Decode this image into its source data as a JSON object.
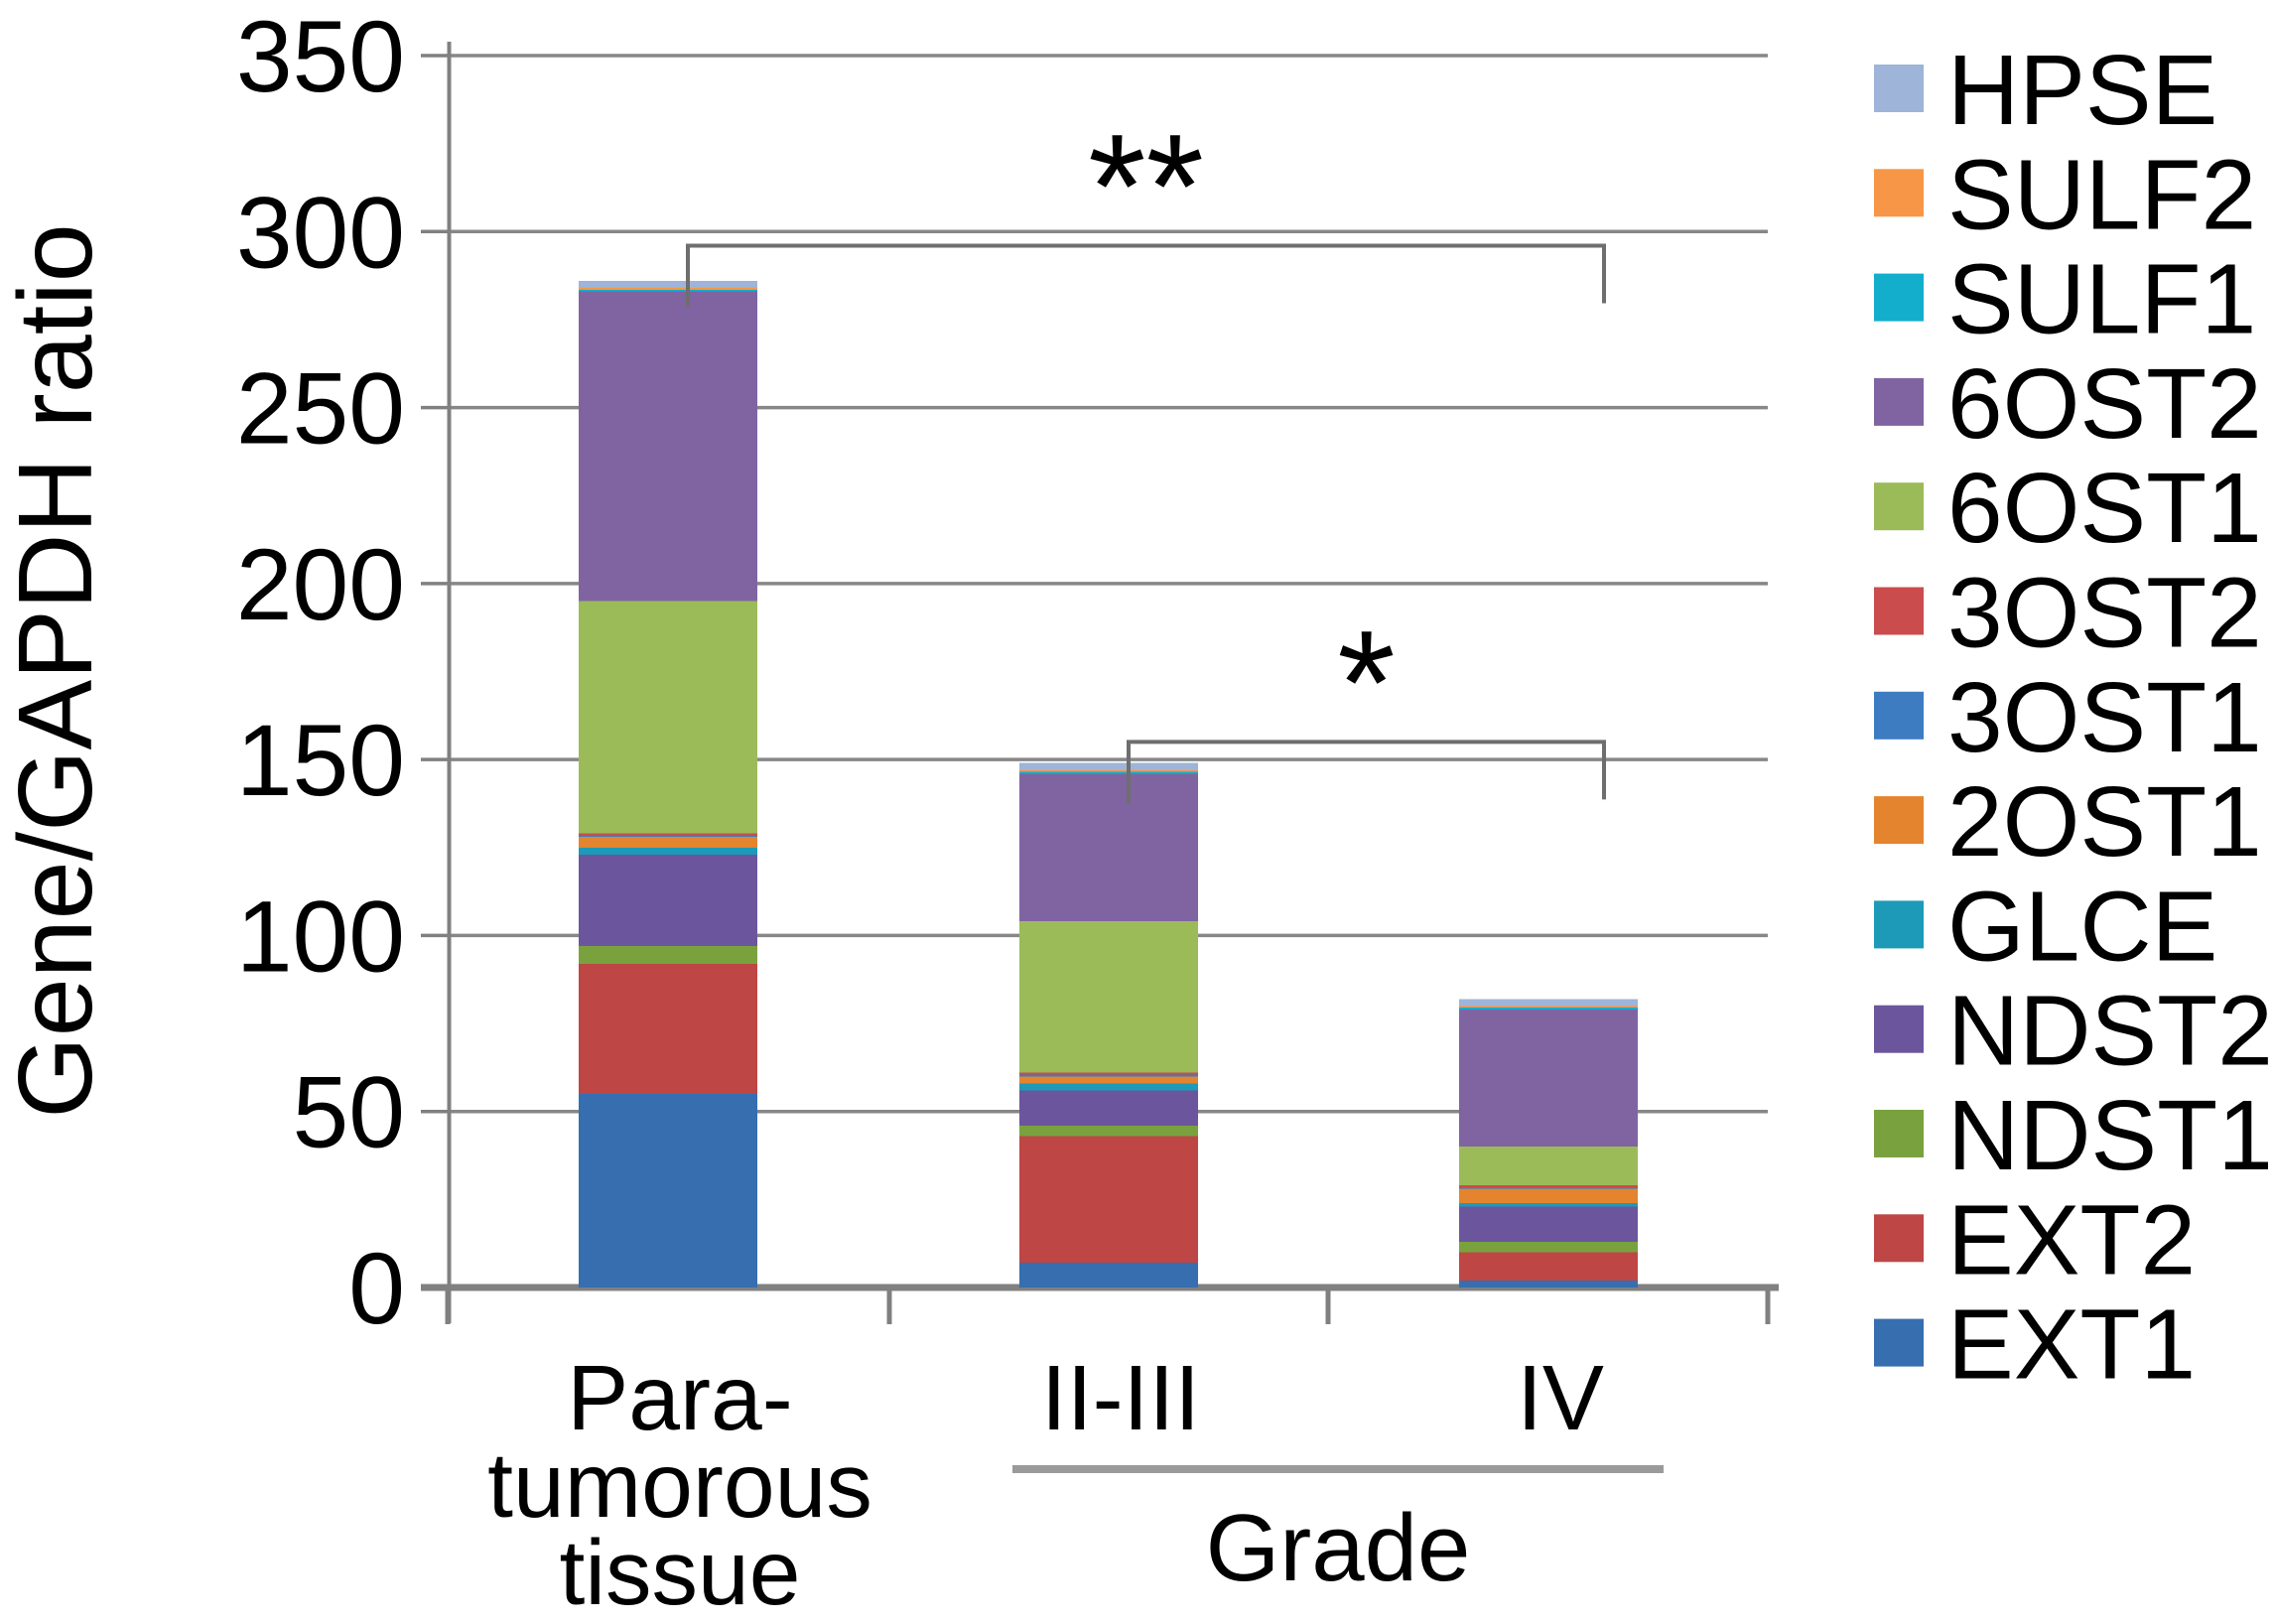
{
  "chart_data": {
    "type": "bar",
    "stacked": true,
    "title": "",
    "ylabel": "Gene/GAPDH ratio",
    "xlabel_group": "Grade",
    "ylim": [
      0,
      350
    ],
    "yticks": [
      0,
      50,
      100,
      150,
      200,
      250,
      300,
      350
    ],
    "grid": true,
    "categories": [
      "Para-\ntumorous\ntissue",
      "II-III",
      "IV"
    ],
    "category_totals_approx": [
      286,
      149,
      82
    ],
    "series": [
      {
        "name": "EXT1",
        "color": "#366EB0",
        "values": [
          55,
          7,
          2
        ]
      },
      {
        "name": "EXT2",
        "color": "#BE4645",
        "values": [
          37,
          36,
          8
        ]
      },
      {
        "name": "NDST1",
        "color": "#79A23E",
        "values": [
          5,
          3,
          3
        ]
      },
      {
        "name": "NDST2",
        "color": "#6B569E",
        "values": [
          26,
          10,
          10
        ]
      },
      {
        "name": "GLCE",
        "color": "#1C9AB8",
        "values": [
          2,
          2,
          1
        ]
      },
      {
        "name": "2OST1",
        "color": "#E4842F",
        "values": [
          3,
          2,
          4
        ]
      },
      {
        "name": "3OST1",
        "color": "#3E7CC1",
        "values": [
          0.5,
          0.5,
          0.5
        ]
      },
      {
        "name": "3OST2",
        "color": "#CB4C4C",
        "values": [
          0.5,
          0.5,
          0.5
        ]
      },
      {
        "name": "6OST1",
        "color": "#9BBB59",
        "values": [
          66,
          43,
          11
        ]
      },
      {
        "name": "6OST2",
        "color": "#8064A2",
        "values": [
          88,
          42,
          39
        ]
      },
      {
        "name": "SULF1",
        "color": "#12AECB",
        "values": [
          0.5,
          0.5,
          0.5
        ]
      },
      {
        "name": "SULF2",
        "color": "#F79646",
        "values": [
          0.5,
          0.5,
          0.5
        ]
      },
      {
        "name": "HPSE",
        "color": "#9EB4D8",
        "values": [
          2,
          2,
          2
        ]
      }
    ],
    "legend": {
      "position": "right",
      "order_top_to_bottom": [
        "HPSE",
        "SULF2",
        "SULF1",
        "6OST2",
        "6OST1",
        "3OST2",
        "3OST1",
        "2OST1",
        "GLCE",
        "NDST2",
        "NDST1",
        "EXT2",
        "EXT1"
      ]
    },
    "annotations": [
      {
        "type": "significance-bracket",
        "label": "**",
        "from_index": 0,
        "to_index": 2,
        "y_value": 296
      },
      {
        "type": "significance-bracket",
        "label": "*",
        "from_index": 1,
        "to_index": 2,
        "y_value": 155
      }
    ],
    "axis_colors": {
      "gridline": "#878787",
      "axis": "#808080",
      "bracket": "#6e6e6e",
      "grade_underline": "#9a9a9a"
    }
  }
}
